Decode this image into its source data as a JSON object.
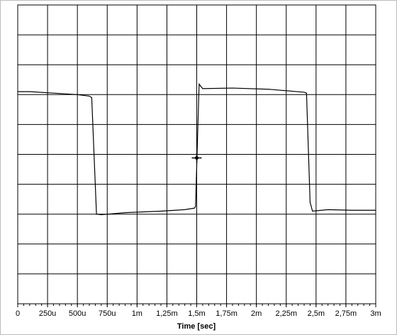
{
  "chart_data": {
    "type": "line",
    "xlabel": "Time [sec]",
    "x": [
      0,
      0.0001,
      0.0003,
      0.0005,
      0.0006,
      0.00062,
      0.00066,
      0.0007,
      0.0009,
      0.0012,
      0.0014,
      0.00148,
      0.00149,
      0.00152,
      0.00155,
      0.0018,
      0.0021,
      0.0024,
      0.00242,
      0.00245,
      0.00247,
      0.0026,
      0.0028,
      0.003
    ],
    "series": [
      {
        "color": "#000000",
        "values": [
          7.1,
          7.1,
          7.05,
          7.0,
          6.95,
          6.9,
          3.0,
          2.98,
          3.05,
          3.1,
          3.15,
          3.2,
          3.25,
          7.35,
          7.2,
          7.22,
          7.18,
          7.08,
          7.05,
          3.4,
          3.1,
          3.15,
          3.13,
          3.13
        ]
      }
    ],
    "trigger": {
      "x": 0.0015,
      "y": 5
    },
    "xlim": [
      0,
      0.003
    ],
    "xticks": [
      0,
      {
        "value": 0.00025,
        "label": "250u"
      },
      {
        "value": 0.0005,
        "label": "500u"
      },
      {
        "value": 0.00075,
        "label": "750u"
      },
      {
        "value": 0.001,
        "label": "1m"
      },
      {
        "value": 0.00125,
        "label": "1,25m"
      },
      {
        "value": 0.0015,
        "label": "1,5m"
      },
      {
        "value": 0.00175,
        "label": "1,75m"
      },
      {
        "value": 0.002,
        "label": "2m"
      },
      {
        "value": 0.00225,
        "label": "2,25m"
      },
      {
        "value": 0.0025,
        "label": "2,5m"
      },
      {
        "value": 0.00275,
        "label": "2,75m"
      },
      {
        "value": 0.003,
        "label": "3m"
      }
    ],
    "ylim": [
      0,
      10
    ],
    "yticks": [
      0,
      1,
      2,
      3,
      4,
      5,
      6,
      7,
      8,
      9,
      10
    ],
    "grid": true
  }
}
